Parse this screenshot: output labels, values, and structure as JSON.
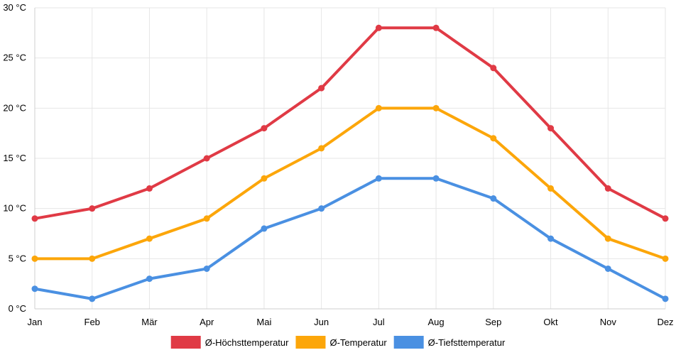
{
  "chart_data": {
    "type": "line",
    "title": "",
    "xlabel": "",
    "ylabel": "",
    "categories": [
      "Jan",
      "Feb",
      "Mär",
      "Apr",
      "Mai",
      "Jun",
      "Jul",
      "Aug",
      "Sep",
      "Okt",
      "Nov",
      "Dez"
    ],
    "ylim": [
      0,
      30
    ],
    "yticks": [
      0,
      5,
      10,
      15,
      20,
      25,
      30
    ],
    "yunit": " °C",
    "grid": true,
    "legend_position": "bottom",
    "series": [
      {
        "name": "Ø-Höchsttemperatur",
        "color": "#e03a45",
        "values": [
          9,
          10,
          12,
          15,
          18,
          22,
          28,
          28,
          24,
          18,
          12,
          9
        ]
      },
      {
        "name": "Ø-Temperatur",
        "color": "#fca60a",
        "values": [
          5,
          5,
          7,
          9,
          13,
          16,
          20,
          20,
          17,
          12,
          7,
          5
        ]
      },
      {
        "name": "Ø-Tiefsttemperatur",
        "color": "#4a90e2",
        "values": [
          2,
          1,
          3,
          4,
          8,
          10,
          13,
          13,
          11,
          7,
          4,
          1
        ]
      }
    ]
  }
}
